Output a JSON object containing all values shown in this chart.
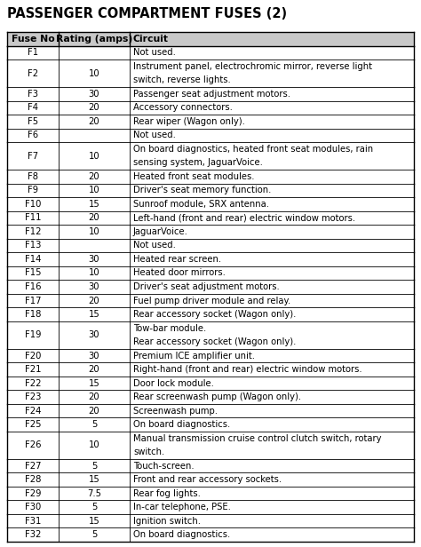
{
  "title": "PASSENGER COMPARTMENT FUSES (2)",
  "headers": [
    "Fuse No",
    "Rating (amps)",
    "Circuit"
  ],
  "rows": [
    [
      "F1",
      "",
      "Not used."
    ],
    [
      "F2",
      "10",
      "Instrument panel, electrochromic mirror, reverse light\nswitch, reverse lights."
    ],
    [
      "F3",
      "30",
      "Passenger seat adjustment motors."
    ],
    [
      "F4",
      "20",
      "Accessory connectors."
    ],
    [
      "F5",
      "20",
      "Rear wiper (Wagon only)."
    ],
    [
      "F6",
      "",
      "Not used."
    ],
    [
      "F7",
      "10",
      "On board diagnostics, heated front seat modules, rain\nsensing system, JaguarVoice."
    ],
    [
      "F8",
      "20",
      "Heated front seat modules."
    ],
    [
      "F9",
      "10",
      "Driver's seat memory function."
    ],
    [
      "F10",
      "15",
      "Sunroof module, SRX antenna."
    ],
    [
      "F11",
      "20",
      "Left-hand (front and rear) electric window motors."
    ],
    [
      "F12",
      "10",
      "JaguarVoice."
    ],
    [
      "F13",
      "",
      "Not used."
    ],
    [
      "F14",
      "30",
      "Heated rear screen."
    ],
    [
      "F15",
      "10",
      "Heated door mirrors."
    ],
    [
      "F16",
      "30",
      "Driver's seat adjustment motors."
    ],
    [
      "F17",
      "20",
      "Fuel pump driver module and relay."
    ],
    [
      "F18",
      "15",
      "Rear accessory socket (Wagon only)."
    ],
    [
      "F19",
      "30",
      "Tow-bar module.\nRear accessory socket (Wagon only)."
    ],
    [
      "F20",
      "30",
      "Premium ICE amplifier unit."
    ],
    [
      "F21",
      "20",
      "Right-hand (front and rear) electric window motors."
    ],
    [
      "F22",
      "15",
      "Door lock module."
    ],
    [
      "F23",
      "20",
      "Rear screenwash pump (Wagon only)."
    ],
    [
      "F24",
      "20",
      "Screenwash pump."
    ],
    [
      "F25",
      "5",
      "On board diagnostics."
    ],
    [
      "F26",
      "10",
      "Manual transmission cruise control clutch switch, rotary\nswitch."
    ],
    [
      "F27",
      "5",
      "Touch-screen."
    ],
    [
      "F28",
      "15",
      "Front and rear accessory sockets."
    ],
    [
      "F29",
      "7.5",
      "Rear fog lights."
    ],
    [
      "F30",
      "5",
      "In-car telephone, PSE."
    ],
    [
      "F31",
      "15",
      "Ignition switch."
    ],
    [
      "F32",
      "5",
      "On board diagnostics."
    ]
  ],
  "bg_color": "#ffffff",
  "header_bg": "#c8c8c8",
  "border_color": "#000000",
  "title_color": "#000000",
  "text_color": "#000000",
  "title_fontsize": 10.5,
  "header_fontsize": 7.8,
  "body_fontsize": 7.2
}
